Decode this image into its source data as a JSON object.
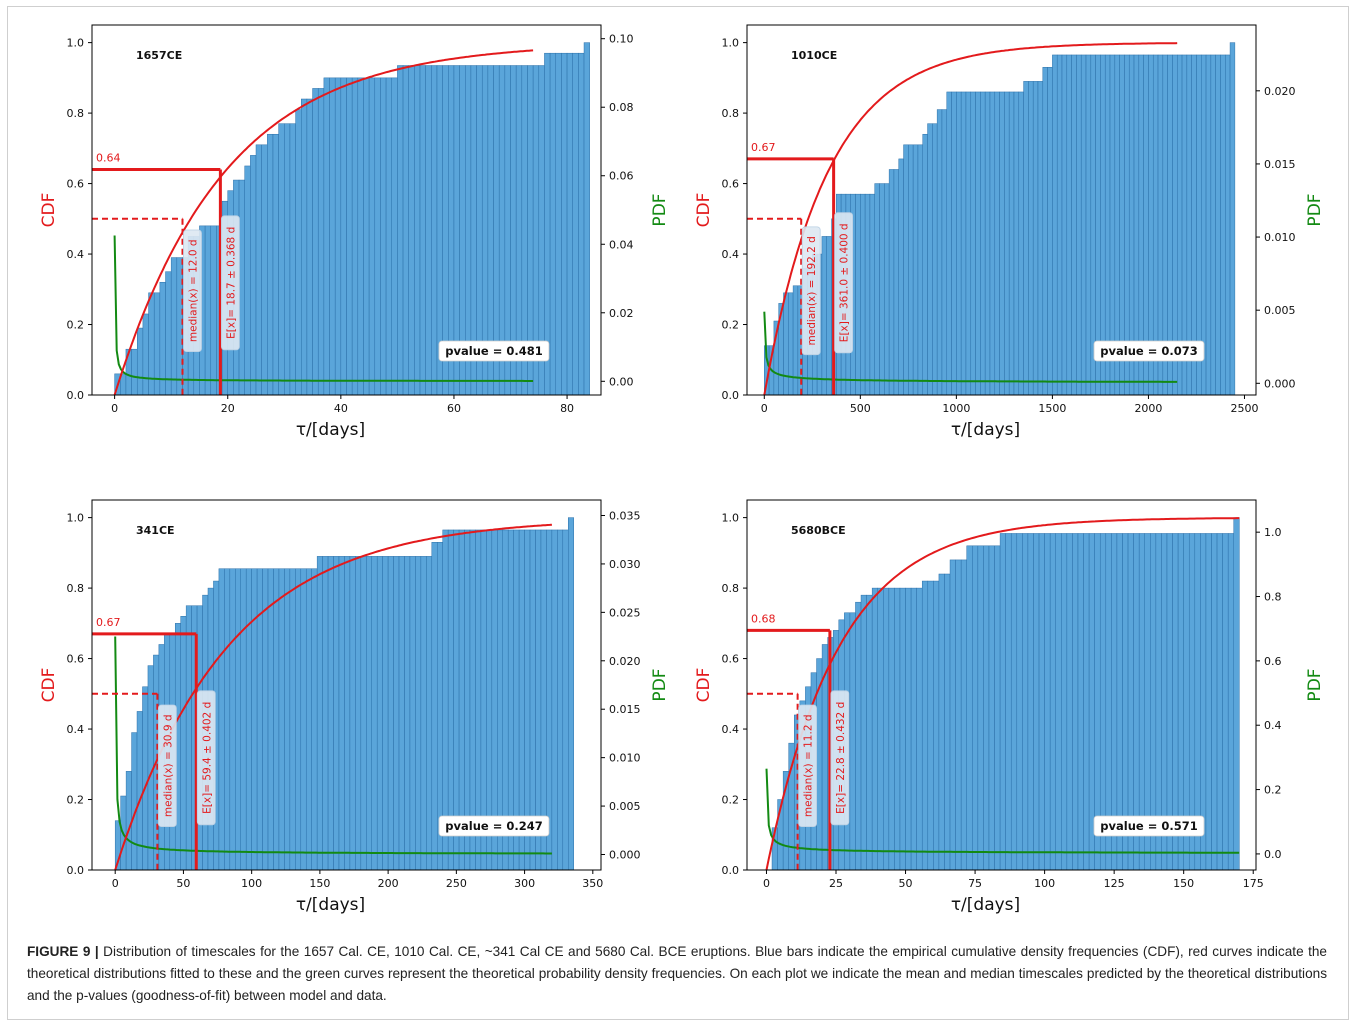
{
  "chart_data": [
    {
      "type": "bar",
      "panel_label": "1657CE",
      "xlabel": "τ/[days]",
      "ylabel_left": "CDF",
      "ylabel_right": "PDF",
      "xlim": [
        -4,
        86
      ],
      "ylim": [
        0,
        1.05
      ],
      "ylim_right": [
        -0.004,
        0.104
      ],
      "xticks": [
        0,
        20,
        40,
        60,
        80
      ],
      "yticks": [
        0.0,
        0.2,
        0.4,
        0.6,
        0.8,
        1.0
      ],
      "yticks_right": [
        0.0,
        0.02,
        0.04,
        0.06,
        0.08,
        0.1
      ],
      "ytick_right_labels": [
        "0.00",
        "0.02",
        "0.04",
        "0.06",
        "0.08",
        "0.10"
      ],
      "histogram": {
        "bin_width": 1,
        "x_start": 0,
        "steps": [
          [
            0,
            0.06
          ],
          [
            2,
            0.13
          ],
          [
            4,
            0.19
          ],
          [
            5,
            0.23
          ],
          [
            6,
            0.29
          ],
          [
            8,
            0.32
          ],
          [
            9,
            0.35
          ],
          [
            10,
            0.39
          ],
          [
            13,
            0.45
          ],
          [
            15,
            0.48
          ],
          [
            17,
            0.48
          ],
          [
            19,
            0.55
          ],
          [
            20,
            0.58
          ],
          [
            21,
            0.61
          ],
          [
            23,
            0.65
          ],
          [
            24,
            0.68
          ],
          [
            25,
            0.71
          ],
          [
            27,
            0.74
          ],
          [
            29,
            0.77
          ],
          [
            32,
            0.81
          ],
          [
            33,
            0.84
          ],
          [
            35,
            0.87
          ],
          [
            37,
            0.9
          ],
          [
            50,
            0.935
          ],
          [
            76,
            0.97
          ],
          [
            83,
            1.0
          ],
          [
            84,
            1.0
          ]
        ]
      },
      "cdf_fit": {
        "family": "exponential",
        "scale": 19.4,
        "x_range": [
          0,
          74
        ]
      },
      "pdf_fit": {
        "family": "power",
        "a": 0.00385,
        "b": 0.85,
        "x_range": [
          0,
          74
        ]
      },
      "cdf_level": 0.64,
      "cdf_level_label": "0.64",
      "mean": 18.7,
      "mean_label": "E[x]= 18.7 ± 0.368 d",
      "median": 12.0,
      "median_label": "median(x) = 12.0 d",
      "pvalue_label": "pvalue = 0.481"
    },
    {
      "type": "bar",
      "panel_label": "1010CE",
      "xlabel": "τ/[days]",
      "ylabel_left": "CDF",
      "ylabel_right": "PDF",
      "xlim": [
        -90,
        2560
      ],
      "ylim": [
        0,
        1.05
      ],
      "ylim_right": [
        -0.0008,
        0.0245
      ],
      "xticks": [
        0,
        500,
        1000,
        1500,
        2000,
        2500
      ],
      "yticks": [
        0.0,
        0.2,
        0.4,
        0.6,
        0.8,
        1.0
      ],
      "yticks_right": [
        0.0,
        0.005,
        0.01,
        0.015,
        0.02
      ],
      "ytick_right_labels": [
        "0.000",
        "0.005",
        "0.010",
        "0.015",
        "0.020"
      ],
      "histogram": {
        "bin_width": 25,
        "x_start": 0,
        "steps": [
          [
            0,
            0.14
          ],
          [
            50,
            0.21
          ],
          [
            75,
            0.26
          ],
          [
            100,
            0.29
          ],
          [
            150,
            0.31
          ],
          [
            200,
            0.36
          ],
          [
            250,
            0.4
          ],
          [
            300,
            0.45
          ],
          [
            350,
            0.5
          ],
          [
            375,
            0.57
          ],
          [
            450,
            0.57
          ],
          [
            575,
            0.6
          ],
          [
            650,
            0.64
          ],
          [
            700,
            0.67
          ],
          [
            725,
            0.71
          ],
          [
            825,
            0.74
          ],
          [
            850,
            0.77
          ],
          [
            900,
            0.81
          ],
          [
            950,
            0.86
          ],
          [
            1350,
            0.89
          ],
          [
            1450,
            0.93
          ],
          [
            1500,
            0.965
          ],
          [
            2425,
            1.0
          ],
          [
            2450,
            1.0
          ]
        ]
      },
      "cdf_fit": {
        "family": "exponential",
        "scale": 330,
        "x_range": [
          0,
          2150
        ]
      },
      "pdf_fit": {
        "family": "power",
        "a": 0.0066,
        "b": 0.55,
        "x_range": [
          0,
          2150
        ]
      },
      "cdf_level": 0.67,
      "cdf_level_label": "0.67",
      "mean": 361.0,
      "mean_label": "E[x]= 361.0 ± 0.400 d",
      "median": 192.2,
      "median_label": "median(x) = 192.2 d",
      "pvalue_label": "pvalue = 0.073"
    },
    {
      "type": "bar",
      "panel_label": "341CE",
      "xlabel": "τ/[days]",
      "ylabel_left": "CDF",
      "ylabel_right": "PDF",
      "xlim": [
        -17,
        356
      ],
      "ylim": [
        0,
        1.05
      ],
      "ylim_right": [
        -0.0016,
        0.0366
      ],
      "xticks": [
        0,
        50,
        100,
        150,
        200,
        250,
        300,
        350
      ],
      "yticks": [
        0.0,
        0.2,
        0.4,
        0.6,
        0.8,
        1.0
      ],
      "yticks_right": [
        0.0,
        0.005,
        0.01,
        0.015,
        0.02,
        0.025,
        0.03,
        0.035
      ],
      "ytick_right_labels": [
        "0.000",
        "0.005",
        "0.010",
        "0.015",
        "0.020",
        "0.025",
        "0.030",
        "0.035"
      ],
      "histogram": {
        "bin_width": 4,
        "x_start": 0,
        "steps": [
          [
            0,
            0.14
          ],
          [
            4,
            0.21
          ],
          [
            8,
            0.28
          ],
          [
            12,
            0.39
          ],
          [
            16,
            0.45
          ],
          [
            20,
            0.52
          ],
          [
            24,
            0.58
          ],
          [
            28,
            0.61
          ],
          [
            32,
            0.64
          ],
          [
            36,
            0.67
          ],
          [
            44,
            0.7
          ],
          [
            48,
            0.72
          ],
          [
            52,
            0.75
          ],
          [
            64,
            0.78
          ],
          [
            68,
            0.8
          ],
          [
            72,
            0.82
          ],
          [
            76,
            0.855
          ],
          [
            148,
            0.89
          ],
          [
            232,
            0.93
          ],
          [
            240,
            0.965
          ],
          [
            332,
            1.0
          ],
          [
            336,
            1.0
          ]
        ]
      },
      "cdf_fit": {
        "family": "exponential",
        "scale": 82,
        "x_range": [
          0,
          320
        ]
      },
      "pdf_fit": {
        "family": "power",
        "a": 0.0081,
        "b": 0.75,
        "x_range": [
          0,
          320
        ]
      },
      "cdf_level": 0.67,
      "cdf_level_label": "0.67",
      "mean": 59.4,
      "mean_label": "E[x]= 59.4 ± 0.402 d",
      "median": 30.9,
      "median_label": "median(x) = 30.9 d",
      "pvalue_label": "pvalue = 0.247"
    },
    {
      "type": "bar",
      "panel_label": "5680BCE",
      "xlabel": "τ/[days]",
      "ylabel_left": "CDF",
      "ylabel_right": "PDF",
      "xlim": [
        -7,
        176
      ],
      "ylim": [
        0,
        1.05
      ],
      "ylim_right": [
        -0.05,
        1.1
      ],
      "xticks": [
        0,
        25,
        50,
        75,
        100,
        125,
        150,
        175
      ],
      "yticks": [
        0.0,
        0.2,
        0.4,
        0.6,
        0.8,
        1.0
      ],
      "yticks_right": [
        0.0,
        0.2,
        0.4,
        0.6,
        0.8,
        1.0
      ],
      "ytick_right_labels": [
        "0.0",
        "0.2",
        "0.4",
        "0.6",
        "0.8",
        "1.0"
      ],
      "histogram": {
        "bin_width": 2,
        "x_start": 0,
        "steps": [
          [
            0,
            0.0
          ],
          [
            2,
            0.12
          ],
          [
            4,
            0.2
          ],
          [
            6,
            0.28
          ],
          [
            8,
            0.36
          ],
          [
            10,
            0.44
          ],
          [
            12,
            0.48
          ],
          [
            14,
            0.52
          ],
          [
            16,
            0.56
          ],
          [
            18,
            0.6
          ],
          [
            20,
            0.64
          ],
          [
            22,
            0.66
          ],
          [
            24,
            0.68
          ],
          [
            26,
            0.71
          ],
          [
            28,
            0.73
          ],
          [
            32,
            0.76
          ],
          [
            34,
            0.78
          ],
          [
            38,
            0.8
          ],
          [
            56,
            0.82
          ],
          [
            62,
            0.84
          ],
          [
            66,
            0.88
          ],
          [
            72,
            0.92
          ],
          [
            84,
            0.955
          ],
          [
            168,
            1.0
          ],
          [
            170,
            1.0
          ]
        ]
      },
      "cdf_fit": {
        "family": "exponential",
        "scale": 26,
        "x_range": [
          0,
          170
        ]
      },
      "pdf_fit": {
        "family": "power",
        "a": 0.08,
        "b": 0.6,
        "x_range": [
          0,
          170
        ]
      },
      "cdf_level": 0.68,
      "cdf_level_label": "0.68",
      "mean": 22.8,
      "mean_label": "E[x]= 22.8 ± 0.432 d",
      "median": 11.2,
      "median_label": "median(x) = 11.2 d",
      "pvalue_label": "pvalue = 0.571"
    }
  ],
  "colors": {
    "bar_fill": "#5aa5da",
    "bar_edge": "#2a6fa8",
    "cdf": "#e31a1c",
    "pdf": "#138a13",
    "cdf_axis_label": "#e31a1c",
    "pdf_axis_label": "#138a13"
  },
  "caption": {
    "label": "FIGURE 9 |",
    "text": " Distribution of timescales for the 1657 Cal. CE, 1010 Cal. CE, ~341 Cal CE and 5680 Cal. BCE eruptions. Blue bars indicate the empirical cumulative density frequencies (CDF), red curves indicate the theoretical distributions fitted to these and the green curves represent the theoretical probability density frequencies. On each plot we indicate the mean and median timescales predicted by the theoretical distributions and the p-values (goodness-of-fit) between model and data."
  }
}
